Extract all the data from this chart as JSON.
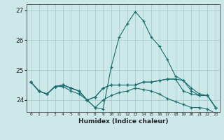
{
  "xlabel": "Humidex (Indice chaleur)",
  "background_color": "#cce8e8",
  "grid_color": "#aacccc",
  "line_color": "#1a6e6e",
  "x": [
    0,
    1,
    2,
    3,
    4,
    5,
    6,
    7,
    8,
    9,
    10,
    11,
    12,
    13,
    14,
    15,
    16,
    17,
    18,
    19,
    20,
    21,
    22,
    23
  ],
  "line1": [
    24.6,
    24.3,
    24.2,
    24.45,
    24.5,
    24.4,
    24.3,
    24.0,
    23.75,
    23.7,
    25.1,
    26.1,
    26.55,
    26.95,
    26.65,
    26.1,
    25.8,
    25.35,
    24.8,
    24.65,
    24.3,
    24.15,
    24.15,
    23.75
  ],
  "line2": [
    24.6,
    24.3,
    24.2,
    24.45,
    24.5,
    24.4,
    24.3,
    24.0,
    24.1,
    24.4,
    24.5,
    24.5,
    24.5,
    24.5,
    24.6,
    24.6,
    24.65,
    24.7,
    24.7,
    24.65,
    24.4,
    24.2,
    24.15,
    23.75
  ],
  "line3": [
    24.6,
    24.3,
    24.2,
    24.45,
    24.5,
    24.4,
    24.3,
    24.0,
    24.1,
    24.4,
    24.5,
    24.5,
    24.5,
    24.5,
    24.6,
    24.6,
    24.65,
    24.7,
    24.7,
    24.3,
    24.2,
    24.15,
    24.15,
    23.75
  ],
  "line4": [
    24.6,
    24.3,
    24.2,
    24.45,
    24.45,
    24.3,
    24.2,
    24.0,
    23.75,
    24.0,
    24.15,
    24.25,
    24.3,
    24.4,
    24.35,
    24.3,
    24.2,
    24.05,
    23.95,
    23.85,
    23.75,
    23.75,
    23.7,
    23.55
  ],
  "ylim": [
    23.6,
    27.2
  ],
  "yticks": [
    24,
    25,
    26,
    27
  ],
  "xticks": [
    0,
    1,
    2,
    3,
    4,
    5,
    6,
    7,
    8,
    9,
    10,
    11,
    12,
    13,
    14,
    15,
    16,
    17,
    18,
    19,
    20,
    21,
    22,
    23
  ]
}
